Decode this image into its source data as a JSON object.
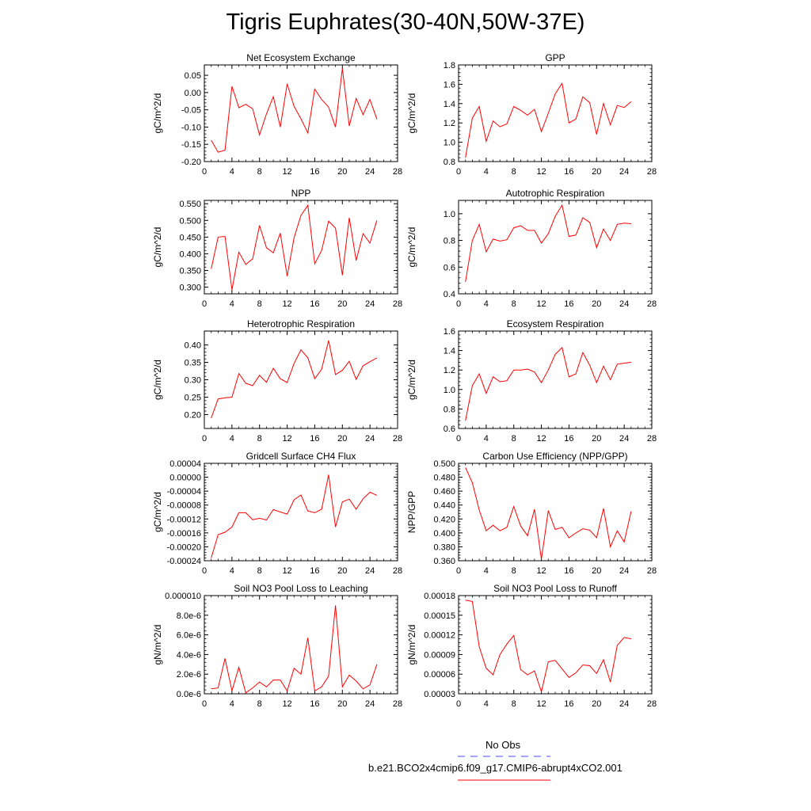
{
  "figure": {
    "title": "Tigris Euphrates(30-40N,50W-37E)",
    "line_color": "#ff0000",
    "obs_color": "#4a4aff"
  },
  "legend": {
    "obs_label": "No Obs",
    "model_label": "b.e21.BCO2x4cmip6.f09_g17.CMIP6-abrupt4xCO2.001"
  },
  "chart_data": [
    {
      "type": "line",
      "title": "Net Ecosystem Exchange",
      "ylabel": "gC/m^2/d",
      "xlim": [
        0,
        28
      ],
      "ylim": [
        -0.2,
        0.08
      ],
      "xticks": [
        0,
        4,
        8,
        12,
        16,
        20,
        24,
        28
      ],
      "xtick_labels": [
        "0",
        "4",
        "8",
        "12",
        "16",
        "20",
        "24",
        "28"
      ],
      "yticks": [
        -0.2,
        -0.15,
        -0.1,
        -0.05,
        0.0,
        0.05
      ],
      "ytick_labels": [
        "-0.20",
        "-0.15",
        "-0.10",
        "-0.05",
        "0.00",
        "0.05"
      ],
      "x": [
        1,
        2,
        3,
        4,
        5,
        6,
        7,
        8,
        9,
        10,
        11,
        12,
        13,
        14,
        15,
        16,
        17,
        18,
        19,
        20,
        21,
        22,
        23,
        24,
        25
      ],
      "values": [
        -0.138,
        -0.173,
        -0.167,
        0.018,
        -0.044,
        -0.034,
        -0.047,
        -0.123,
        -0.062,
        -0.012,
        -0.1,
        0.025,
        -0.04,
        -0.076,
        -0.117,
        0.01,
        -0.02,
        -0.042,
        -0.1,
        0.07,
        -0.097,
        -0.017,
        -0.064,
        -0.02,
        -0.077
      ]
    },
    {
      "type": "line",
      "title": "GPP",
      "ylabel": "gC/m^2/d",
      "xlim": [
        0,
        28
      ],
      "ylim": [
        0.8,
        1.8
      ],
      "xticks": [
        0,
        4,
        8,
        12,
        16,
        20,
        24,
        28
      ],
      "xtick_labels": [
        "0",
        "4",
        "8",
        "12",
        "16",
        "20",
        "24",
        "28"
      ],
      "yticks": [
        0.8,
        1.0,
        1.2,
        1.4,
        1.6,
        1.8
      ],
      "ytick_labels": [
        "0.8",
        "1.0",
        "1.2",
        "1.4",
        "1.6",
        "1.8"
      ],
      "x": [
        1,
        2,
        3,
        4,
        5,
        6,
        7,
        8,
        9,
        10,
        11,
        12,
        13,
        14,
        15,
        16,
        17,
        18,
        19,
        20,
        21,
        22,
        23,
        24,
        25
      ],
      "values": [
        0.84,
        1.25,
        1.37,
        1.01,
        1.22,
        1.16,
        1.19,
        1.37,
        1.33,
        1.28,
        1.34,
        1.11,
        1.3,
        1.5,
        1.61,
        1.2,
        1.24,
        1.47,
        1.41,
        1.08,
        1.4,
        1.18,
        1.38,
        1.36,
        1.42
      ]
    },
    {
      "type": "line",
      "title": "NPP",
      "ylabel": "gC/m^2/d",
      "xlim": [
        0,
        28
      ],
      "ylim": [
        0.28,
        0.56
      ],
      "xticks": [
        0,
        4,
        8,
        12,
        16,
        20,
        24,
        28
      ],
      "xtick_labels": [
        "0",
        "4",
        "8",
        "12",
        "16",
        "20",
        "24",
        "28"
      ],
      "yticks": [
        0.3,
        0.35,
        0.4,
        0.45,
        0.5,
        0.55
      ],
      "ytick_labels": [
        "0.300",
        "0.350",
        "0.400",
        "0.450",
        "0.500",
        "0.550"
      ],
      "x": [
        1,
        2,
        3,
        4,
        5,
        6,
        7,
        8,
        9,
        10,
        11,
        12,
        13,
        14,
        15,
        16,
        17,
        18,
        19,
        20,
        21,
        22,
        23,
        24,
        25
      ],
      "values": [
        0.355,
        0.45,
        0.452,
        0.292,
        0.405,
        0.368,
        0.385,
        0.485,
        0.418,
        0.403,
        0.462,
        0.333,
        0.448,
        0.515,
        0.545,
        0.37,
        0.41,
        0.498,
        0.477,
        0.336,
        0.508,
        0.38,
        0.46,
        0.432,
        0.5
      ]
    },
    {
      "type": "line",
      "title": "Autotrophic Respiration",
      "ylabel": "gC/m^2/d",
      "xlim": [
        0,
        28
      ],
      "ylim": [
        0.4,
        1.1
      ],
      "xticks": [
        0,
        4,
        8,
        12,
        16,
        20,
        24,
        28
      ],
      "xtick_labels": [
        "0",
        "4",
        "8",
        "12",
        "16",
        "20",
        "24",
        "28"
      ],
      "yticks": [
        0.4,
        0.6,
        0.8,
        1.0
      ],
      "ytick_labels": [
        "0.4",
        "0.6",
        "0.8",
        "1.0"
      ],
      "x": [
        1,
        2,
        3,
        4,
        5,
        6,
        7,
        8,
        9,
        10,
        11,
        12,
        13,
        14,
        15,
        16,
        17,
        18,
        19,
        20,
        21,
        22,
        23,
        24,
        25
      ],
      "values": [
        0.49,
        0.8,
        0.92,
        0.715,
        0.81,
        0.795,
        0.805,
        0.895,
        0.91,
        0.875,
        0.875,
        0.78,
        0.85,
        0.98,
        1.065,
        0.83,
        0.84,
        0.97,
        0.935,
        0.745,
        0.885,
        0.8,
        0.92,
        0.93,
        0.925
      ]
    },
    {
      "type": "line",
      "title": "Heterotrophic Respiration",
      "ylabel": "gC/m^2/d",
      "xlim": [
        0,
        28
      ],
      "ylim": [
        0.16,
        0.44
      ],
      "xticks": [
        0,
        4,
        8,
        12,
        16,
        20,
        24,
        28
      ],
      "xtick_labels": [
        "0",
        "4",
        "8",
        "12",
        "16",
        "20",
        "24",
        "28"
      ],
      "yticks": [
        0.2,
        0.25,
        0.3,
        0.35,
        0.4
      ],
      "ytick_labels": [
        "0.20",
        "0.25",
        "0.30",
        "0.35",
        "0.40"
      ],
      "x": [
        1,
        2,
        3,
        4,
        5,
        6,
        7,
        8,
        9,
        10,
        11,
        12,
        13,
        14,
        15,
        16,
        17,
        18,
        19,
        20,
        21,
        22,
        23,
        24,
        25
      ],
      "values": [
        0.19,
        0.245,
        0.248,
        0.25,
        0.318,
        0.29,
        0.283,
        0.313,
        0.293,
        0.333,
        0.303,
        0.292,
        0.347,
        0.386,
        0.363,
        0.303,
        0.33,
        0.413,
        0.315,
        0.327,
        0.353,
        0.301,
        0.34,
        0.352,
        0.363
      ]
    },
    {
      "type": "line",
      "title": "Ecosystem Respiration",
      "ylabel": "gC/m^2/d",
      "xlim": [
        0,
        28
      ],
      "ylim": [
        0.6,
        1.6
      ],
      "xticks": [
        0,
        4,
        8,
        12,
        16,
        20,
        24,
        28
      ],
      "xtick_labels": [
        "0",
        "4",
        "8",
        "12",
        "16",
        "20",
        "24",
        "28"
      ],
      "yticks": [
        0.6,
        0.8,
        1.0,
        1.2,
        1.4,
        1.6
      ],
      "ytick_labels": [
        "0.6",
        "0.8",
        "1.0",
        "1.2",
        "1.4",
        "1.6"
      ],
      "x": [
        1,
        2,
        3,
        4,
        5,
        6,
        7,
        8,
        9,
        10,
        11,
        12,
        13,
        14,
        15,
        16,
        17,
        18,
        19,
        20,
        21,
        22,
        23,
        24,
        25
      ],
      "values": [
        0.68,
        1.04,
        1.16,
        0.96,
        1.13,
        1.08,
        1.09,
        1.2,
        1.2,
        1.21,
        1.18,
        1.07,
        1.2,
        1.36,
        1.43,
        1.13,
        1.16,
        1.38,
        1.25,
        1.07,
        1.24,
        1.1,
        1.26,
        1.27,
        1.28
      ]
    },
    {
      "type": "line",
      "title": "Gridcell Surface CH4 Flux",
      "ylabel": "gC/m^2/d",
      "xlim": [
        0,
        28
      ],
      "ylim": [
        -0.00024,
        4e-05
      ],
      "xticks": [
        0,
        4,
        8,
        12,
        16,
        20,
        24,
        28
      ],
      "xtick_labels": [
        "0",
        "4",
        "8",
        "12",
        "16",
        "20",
        "24",
        "28"
      ],
      "yticks": [
        -0.00024,
        -0.0002,
        -0.00016,
        -0.00012,
        -8e-05,
        -4e-05,
        0.0,
        4e-05
      ],
      "ytick_labels": [
        "-0.00024",
        "-0.00020",
        "-0.00016",
        "-0.00012",
        "-0.00008",
        "-0.00004",
        "0.00000",
        "0.00004"
      ],
      "x": [
        1,
        2,
        3,
        4,
        5,
        6,
        7,
        8,
        9,
        10,
        11,
        12,
        13,
        14,
        15,
        16,
        17,
        18,
        19,
        20,
        21,
        22,
        23,
        24,
        25
      ],
      "values": [
        -0.000232,
        -0.000165,
        -0.000158,
        -0.000143,
        -0.000102,
        -0.000102,
        -0.000122,
        -0.000118,
        -0.000123,
        -9.3e-05,
        -0.0001,
        -0.000106,
        -6.5e-05,
        -5.1e-05,
        -9.7e-05,
        -0.000102,
        -9.2e-05,
        7e-06,
        -0.000143,
        -7.1e-05,
        -6.3e-05,
        -9.2e-05,
        -6.2e-05,
        -4.3e-05,
        -5.2e-05
      ]
    },
    {
      "type": "line",
      "title": "Carbon Use Efficiency (NPP/GPP)",
      "ylabel": "NPP/GPP",
      "xlim": [
        0,
        28
      ],
      "ylim": [
        0.36,
        0.5
      ],
      "xticks": [
        0,
        4,
        8,
        12,
        16,
        20,
        24,
        28
      ],
      "xtick_labels": [
        "0",
        "4",
        "8",
        "12",
        "16",
        "20",
        "24",
        "28"
      ],
      "yticks": [
        0.36,
        0.38,
        0.4,
        0.42,
        0.44,
        0.46,
        0.48,
        0.5
      ],
      "ytick_labels": [
        "0.360",
        "0.380",
        "0.400",
        "0.420",
        "0.440",
        "0.460",
        "0.480",
        "0.500"
      ],
      "x": [
        1,
        2,
        3,
        4,
        5,
        6,
        7,
        8,
        9,
        10,
        11,
        12,
        13,
        14,
        15,
        16,
        17,
        18,
        19,
        20,
        21,
        22,
        23,
        24,
        25
      ],
      "values": [
        0.494,
        0.472,
        0.433,
        0.403,
        0.411,
        0.403,
        0.408,
        0.438,
        0.41,
        0.396,
        0.434,
        0.362,
        0.432,
        0.405,
        0.408,
        0.393,
        0.4,
        0.406,
        0.404,
        0.393,
        0.435,
        0.38,
        0.403,
        0.387,
        0.431
      ]
    },
    {
      "type": "line",
      "title": "Soil NO3 Pool Loss to Leaching",
      "ylabel": "gN/m^2/d",
      "xlim": [
        0,
        28
      ],
      "ylim": [
        0,
        1e-05
      ],
      "xticks": [
        0,
        4,
        8,
        12,
        16,
        20,
        24,
        28
      ],
      "xtick_labels": [
        "0",
        "4",
        "8",
        "12",
        "16",
        "20",
        "24",
        "28"
      ],
      "yticks": [
        0,
        2e-06,
        4e-06,
        6e-06,
        8e-06,
        1e-05
      ],
      "ytick_labels": [
        "0.0e-6",
        "2.0e-6",
        "4.0e-6",
        "6.0e-6",
        "8.0e-6",
        "0.000010"
      ],
      "x": [
        1,
        2,
        3,
        4,
        5,
        6,
        7,
        8,
        9,
        10,
        11,
        12,
        13,
        14,
        15,
        16,
        17,
        18,
        19,
        20,
        21,
        22,
        23,
        24,
        25
      ],
      "values": [
        5e-07,
        6e-07,
        3.6e-06,
        3e-07,
        2.7e-06,
        1e-07,
        6e-07,
        1.2e-06,
        7e-07,
        1.4e-06,
        1.4e-06,
        3e-07,
        2.6e-06,
        2e-06,
        5.7e-06,
        3e-07,
        7e-07,
        1.8e-06,
        9e-06,
        7e-07,
        1.9e-06,
        1.3e-06,
        5e-07,
        9e-07,
        3e-06
      ]
    },
    {
      "type": "line",
      "title": "Soil NO3 Pool Loss to Runoff",
      "ylabel": "gN/m^2/d",
      "xlim": [
        0,
        28
      ],
      "ylim": [
        3e-05,
        0.00018
      ],
      "xticks": [
        0,
        4,
        8,
        12,
        16,
        20,
        24,
        28
      ],
      "xtick_labels": [
        "0",
        "4",
        "8",
        "12",
        "16",
        "20",
        "24",
        "28"
      ],
      "yticks": [
        3e-05,
        6e-05,
        9e-05,
        0.00012,
        0.00015,
        0.00018
      ],
      "ytick_labels": [
        "0.00003",
        "0.00006",
        "0.00009",
        "0.00012",
        "0.00015",
        "0.00018"
      ],
      "x": [
        1,
        2,
        3,
        4,
        5,
        6,
        7,
        8,
        9,
        10,
        11,
        12,
        13,
        14,
        15,
        16,
        17,
        18,
        19,
        20,
        21,
        22,
        23,
        24,
        25
      ],
      "values": [
        0.000173,
        0.000171,
        0.000102,
        6.9e-05,
        5.9e-05,
        9e-05,
        0.000106,
        0.000119,
        6.7e-05,
        5.9e-05,
        6.5e-05,
        3.3e-05,
        7.9e-05,
        8.1e-05,
        6.8e-05,
        5.5e-05,
        6.2e-05,
        7.4e-05,
        7.3e-05,
        6.1e-05,
        8.2e-05,
        4.8e-05,
        0.000104,
        0.000116,
        0.000114
      ]
    }
  ]
}
